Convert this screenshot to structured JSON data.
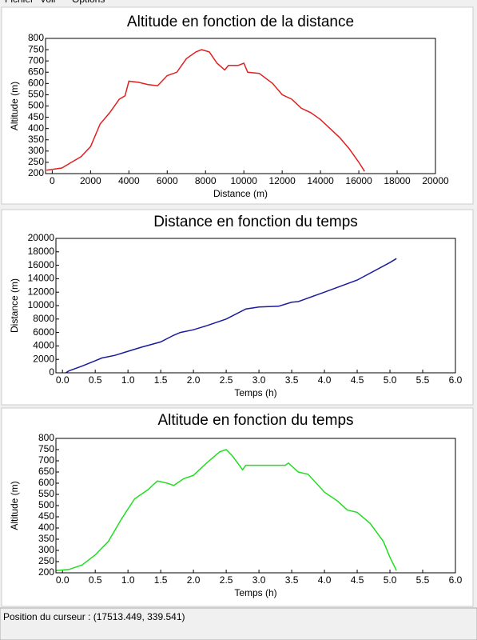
{
  "menu": [
    "Fichier",
    "Voir",
    "Options"
  ],
  "status": "Position du curseur : (17513.449, 339.541)",
  "chart_data": [
    {
      "type": "line",
      "title": "Altitude en fonction de la distance",
      "xlabel": "Distance (m)",
      "ylabel": "Altitude (m)",
      "color": "#e02020",
      "x": [
        -300,
        500,
        1000,
        1500,
        2000,
        2500,
        3000,
        3500,
        3800,
        4000,
        4500,
        5000,
        5500,
        6000,
        6500,
        7000,
        7500,
        7800,
        8200,
        8600,
        9000,
        9200,
        9700,
        10000,
        10200,
        10800,
        11500,
        12000,
        12500,
        13000,
        13500,
        14000,
        14500,
        15000,
        15500,
        16000,
        16300
      ],
      "values": [
        215,
        225,
        250,
        275,
        320,
        420,
        470,
        530,
        545,
        610,
        605,
        595,
        590,
        635,
        650,
        710,
        740,
        750,
        740,
        690,
        660,
        680,
        680,
        690,
        650,
        645,
        600,
        550,
        530,
        490,
        470,
        440,
        400,
        360,
        310,
        250,
        210
      ],
      "xlim": [
        -350,
        20000
      ],
      "xticks": [
        0,
        2000,
        4000,
        6000,
        8000,
        10000,
        12000,
        14000,
        16000,
        18000,
        20000
      ],
      "ylim": [
        200,
        800
      ],
      "yticks": [
        200,
        250,
        300,
        350,
        400,
        450,
        500,
        550,
        600,
        650,
        700,
        750,
        800
      ]
    },
    {
      "type": "line",
      "title": "Distance en fonction du temps",
      "xlabel": "Temps (h)",
      "ylabel": "Distance (m)",
      "color": "#1a1aa0",
      "x": [
        0.05,
        0.1,
        0.3,
        0.5,
        0.6,
        0.8,
        1.0,
        1.2,
        1.5,
        1.7,
        1.8,
        2.0,
        2.2,
        2.5,
        2.8,
        3.0,
        3.3,
        3.5,
        3.6,
        4.0,
        4.5,
        5.0,
        5.1
      ],
      "values": [
        0,
        300,
        1000,
        1800,
        2200,
        2600,
        3200,
        3800,
        4600,
        5600,
        6000,
        6400,
        7000,
        8000,
        9500,
        9800,
        9900,
        10500,
        10600,
        12000,
        13800,
        16400,
        17000
      ],
      "xlim": [
        -0.1,
        6.0
      ],
      "xticks": [
        {
          "value": 0,
          "label": "0.0"
        },
        0.5,
        {
          "value": 1,
          "label": "1.0"
        },
        1.5,
        {
          "value": 2,
          "label": "2.0"
        },
        2.5,
        {
          "value": 3,
          "label": "3.0"
        },
        3.5,
        {
          "value": 4,
          "label": "4.0"
        },
        4.5,
        {
          "value": 5,
          "label": "5.0"
        },
        5.5,
        {
          "value": 6,
          "label": "6.0"
        }
      ],
      "ylim": [
        0,
        20000
      ],
      "yticks": [
        0,
        2000,
        4000,
        6000,
        8000,
        10000,
        12000,
        14000,
        16000,
        18000,
        20000
      ]
    },
    {
      "type": "line",
      "title": "Altitude en fonction du temps",
      "xlabel": "Temps (h)",
      "ylabel": "Altitude (m)",
      "color": "#22dd22",
      "x": [
        -0.1,
        0.1,
        0.3,
        0.5,
        0.7,
        0.9,
        1.1,
        1.3,
        1.45,
        1.6,
        1.7,
        1.85,
        2.0,
        2.2,
        2.4,
        2.5,
        2.6,
        2.75,
        2.8,
        3.0,
        3.4,
        3.45,
        3.6,
        3.75,
        4.0,
        4.2,
        4.35,
        4.5,
        4.7,
        4.9,
        5.0,
        5.1
      ],
      "values": [
        210,
        215,
        235,
        280,
        340,
        440,
        530,
        570,
        610,
        600,
        590,
        620,
        635,
        690,
        740,
        750,
        720,
        660,
        680,
        680,
        680,
        690,
        650,
        640,
        560,
        520,
        480,
        470,
        420,
        340,
        270,
        210
      ],
      "xlim": [
        -0.1,
        6.0
      ],
      "xticks": [
        {
          "value": 0,
          "label": "0.0"
        },
        0.5,
        {
          "value": 1,
          "label": "1.0"
        },
        1.5,
        {
          "value": 2,
          "label": "2.0"
        },
        2.5,
        {
          "value": 3,
          "label": "3.0"
        },
        3.5,
        {
          "value": 4,
          "label": "4.0"
        },
        4.5,
        {
          "value": 5,
          "label": "5.0"
        },
        5.5,
        {
          "value": 6,
          "label": "6.0"
        }
      ],
      "ylim": [
        200,
        800
      ],
      "yticks": [
        200,
        250,
        300,
        350,
        400,
        450,
        500,
        550,
        600,
        650,
        700,
        750,
        800
      ]
    }
  ]
}
